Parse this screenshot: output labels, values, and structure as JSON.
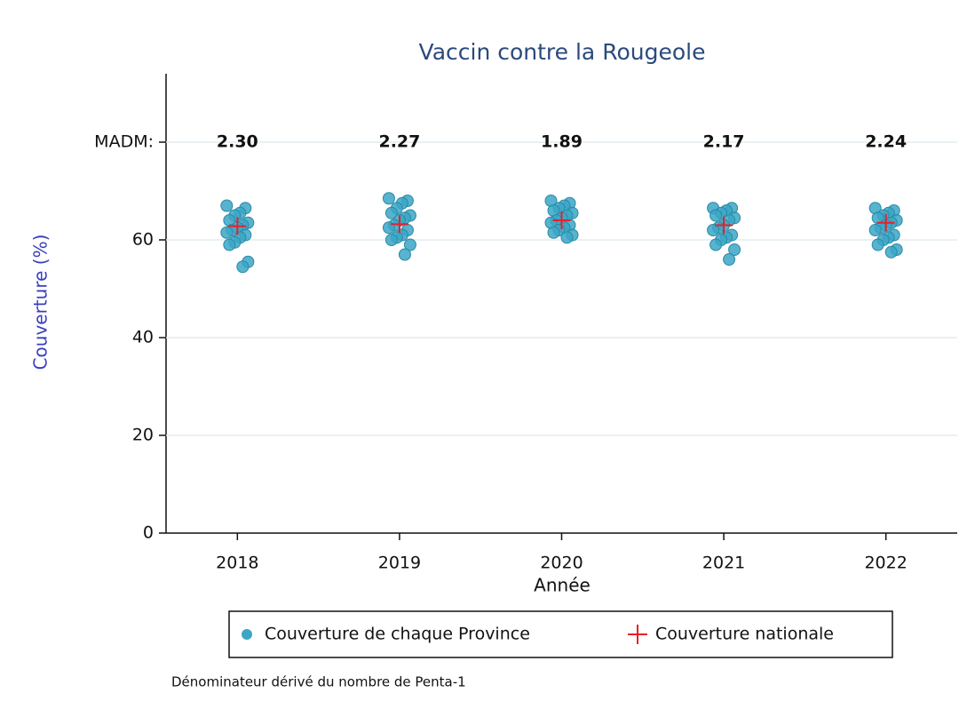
{
  "chart_data": {
    "type": "scatter",
    "title": "Vaccin contre la Rougeole",
    "x_label": "Année",
    "y_label": "Couverture (%)",
    "footnote": "Dénominateur dérivé du nombre de  Penta-1",
    "xlim": [
      2017.56,
      2022.44
    ],
    "xticks": [
      2018,
      2019,
      2020,
      2021,
      2022
    ],
    "ylim": [
      0,
      94
    ],
    "yticks": [
      0,
      20,
      40,
      60,
      {
        "value": 80,
        "label": "MADM:"
      }
    ],
    "grid": true,
    "madm": {
      "x": [
        2018,
        2019,
        2020,
        2021,
        2022
      ],
      "labels": [
        "2.30",
        "2.27",
        "1.89",
        "2.17",
        "2.24"
      ]
    },
    "series": [
      {
        "name": "Couverture de chaque Province",
        "color": "#3aa6c6",
        "marker": "circle",
        "x": [
          2018,
          2018,
          2018,
          2018,
          2018,
          2018,
          2018,
          2018,
          2018,
          2018,
          2018,
          2018,
          2018,
          2018,
          2018,
          2018,
          2019,
          2019,
          2019,
          2019,
          2019,
          2019,
          2019,
          2019,
          2019,
          2019,
          2019,
          2019,
          2019,
          2019,
          2019,
          2019,
          2020,
          2020,
          2020,
          2020,
          2020,
          2020,
          2020,
          2020,
          2020,
          2020,
          2020,
          2020,
          2020,
          2020,
          2020,
          2020,
          2021,
          2021,
          2021,
          2021,
          2021,
          2021,
          2021,
          2021,
          2021,
          2021,
          2021,
          2021,
          2021,
          2021,
          2021,
          2021,
          2022,
          2022,
          2022,
          2022,
          2022,
          2022,
          2022,
          2022,
          2022,
          2022,
          2022,
          2022,
          2022,
          2022,
          2022,
          2022
        ],
        "values": [
          67,
          66.5,
          65.5,
          65,
          64,
          63.5,
          63,
          62.5,
          62,
          61.5,
          61,
          60.5,
          59.5,
          59,
          55.5,
          54.5,
          68.5,
          68,
          67.5,
          66.5,
          65.5,
          65,
          64.5,
          64,
          63,
          62.5,
          62,
          61,
          60.5,
          60,
          59,
          57,
          68,
          67.5,
          67,
          66.5,
          66,
          65.5,
          65,
          64.5,
          64,
          63.5,
          63,
          62.5,
          62,
          61.5,
          61,
          60.5,
          66.5,
          66.5,
          66,
          65.5,
          65,
          64.5,
          64,
          63,
          62.5,
          62,
          61,
          60.5,
          60,
          59,
          58,
          56,
          66.5,
          66,
          65.5,
          65,
          64.5,
          64,
          63.5,
          63,
          62.5,
          62,
          61,
          60.5,
          60,
          59,
          58,
          57.5
        ]
      },
      {
        "name": "Couverture nationale",
        "color": "#e8202a",
        "marker": "plus",
        "x": [
          2018,
          2019,
          2020,
          2021,
          2022
        ],
        "values": [
          62.8,
          63.2,
          64,
          63,
          63.5
        ]
      }
    ]
  }
}
